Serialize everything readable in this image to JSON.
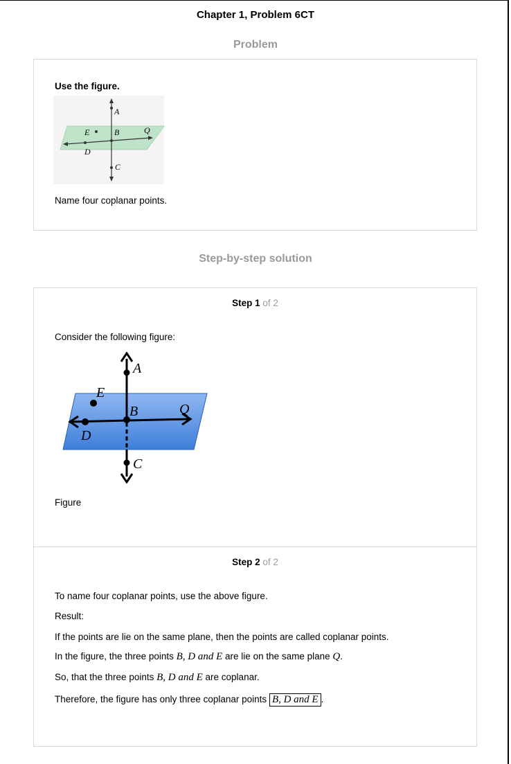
{
  "header": {
    "title": "Chapter 1, Problem 6CT"
  },
  "problem": {
    "heading": "Problem",
    "instruction": "Use the figure.",
    "question": "Name four coplanar points.",
    "figure_labels": {
      "A": "A",
      "B": "B",
      "C": "C",
      "D": "D",
      "E": "E",
      "Q": "Q"
    }
  },
  "solution": {
    "heading": "Step-by-step solution",
    "steps": [
      {
        "label": "Step",
        "number": "1",
        "of": "of 2",
        "intro": "Consider the following figure:",
        "caption": "Figure",
        "figure_labels": {
          "A": "A",
          "B": "B",
          "C": "C",
          "D": "D",
          "E": "E",
          "Q": "Q"
        }
      },
      {
        "label": "Step",
        "number": "2",
        "of": "of 2",
        "line1": "To name four coplanar points, use the above figure.",
        "line2": "Result:",
        "line3": "If the points are lie on the same plane, then the points are called coplanar points.",
        "line4_pre": "In the figure, the three points ",
        "line4_math": "B, D and E",
        "line4_mid": " are lie on the same plane ",
        "line4_plane": "Q",
        "line4_end": ".",
        "line5_pre": "So, that the three points ",
        "line5_math": "B, D and E",
        "line5_end": " are coplanar.",
        "line6_pre": "Therefore, the figure has only three coplanar points ",
        "line6_boxed": "B, D and E",
        "line6_end": "."
      }
    ]
  },
  "colors": {
    "plane_small": "#bfe3c8",
    "plane_large": "#4a86dc",
    "muted": "#999999"
  }
}
